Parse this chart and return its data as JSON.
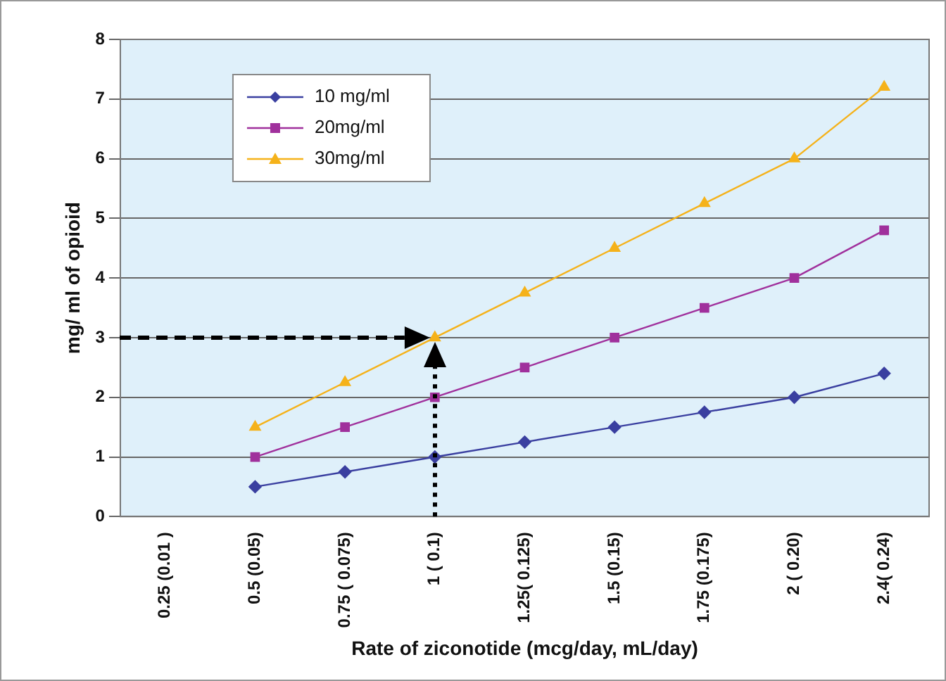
{
  "chart_data": {
    "type": "line",
    "xlabel": "Rate of ziconotide (mcg/day, mL/day)",
    "ylabel": "mg/ ml of opioid",
    "categories": [
      "0.25 (0.01 )",
      "0.5 (0.05)",
      "0.75 ( 0.075)",
      "1 ( 0.1)",
      "1.25( 0.125)",
      "1.5 (0.15)",
      "1.75 (0.175)",
      "2 ( 0.20)",
      "2.4( 0.24)"
    ],
    "series": [
      {
        "name": "10 mg/ml",
        "color": "#3a3fa0",
        "marker": "diamond",
        "values": [
          null,
          0.5,
          0.75,
          1,
          1.25,
          1.5,
          1.75,
          2,
          2.4
        ]
      },
      {
        "name": "20mg/ml",
        "color": "#a0309c",
        "marker": "square",
        "values": [
          null,
          1,
          1.5,
          2,
          2.5,
          3,
          3.5,
          4,
          4.8
        ]
      },
      {
        "name": "30mg/ml",
        "color": "#f5b21a",
        "marker": "triangle",
        "values": [
          null,
          1.5,
          2.25,
          3,
          3.75,
          4.5,
          5.25,
          6,
          7.2
        ]
      }
    ],
    "ylim": [
      0,
      8
    ],
    "yticks": [
      0,
      1,
      2,
      3,
      4,
      5,
      6,
      7,
      8
    ],
    "grid": "y",
    "legend": "top left",
    "ref_lines": [
      {
        "axis": "y",
        "value": 3,
        "color": "#000000",
        "line_style": "dashed"
      },
      {
        "axis": "x",
        "value": "1 ( 0.1)",
        "color": "#000000",
        "line_style": "dotted"
      }
    ]
  }
}
